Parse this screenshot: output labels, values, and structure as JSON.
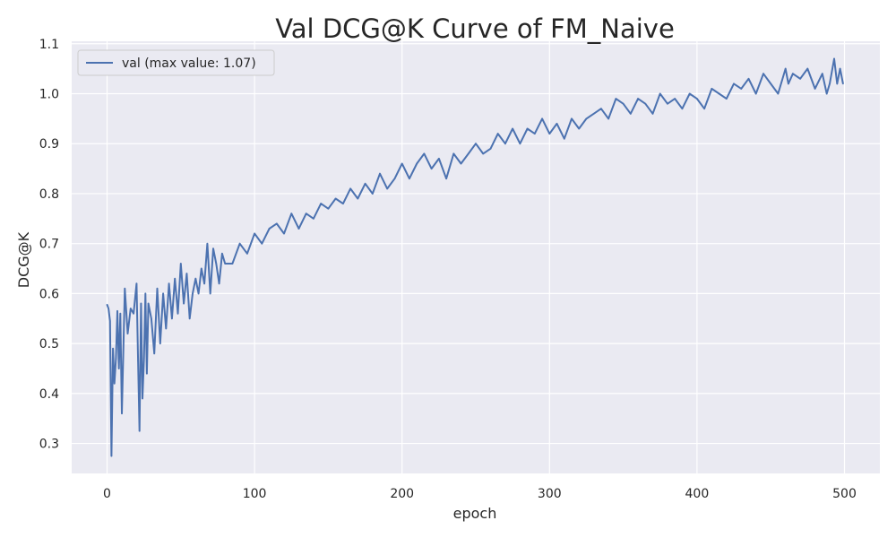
{
  "chart_data": {
    "type": "line",
    "title": "Val DCG@K Curve of FM_Naive",
    "xlabel": "epoch",
    "ylabel": "DCG@K",
    "xlim": [
      -24,
      524
    ],
    "ylim": [
      0.24,
      1.105
    ],
    "x_ticks": [
      0,
      100,
      200,
      300,
      400,
      500
    ],
    "y_ticks": [
      0.3,
      0.4,
      0.5,
      0.6,
      0.7,
      0.8,
      0.9,
      1.0,
      1.1
    ],
    "y_tick_labels": [
      "0.3",
      "0.4",
      "0.5",
      "0.6",
      "0.7",
      "0.8",
      "0.9",
      "1.0",
      "1.1"
    ],
    "grid": true,
    "legend": {
      "position": "top-left"
    },
    "colors": {
      "background": "#eaeaf2",
      "grid": "#ffffff",
      "line": "#4c72b0",
      "text": "#262626"
    },
    "series": [
      {
        "name": "val (max value: 1.07)",
        "x": [
          0,
          1,
          2,
          3,
          4,
          5,
          6,
          7,
          8,
          9,
          10,
          12,
          14,
          16,
          18,
          20,
          21,
          22,
          23,
          24,
          25,
          26,
          27,
          28,
          30,
          32,
          34,
          36,
          38,
          40,
          42,
          44,
          46,
          48,
          50,
          52,
          54,
          56,
          58,
          60,
          62,
          64,
          66,
          68,
          70,
          72,
          74,
          76,
          78,
          80,
          85,
          90,
          95,
          100,
          105,
          110,
          115,
          120,
          125,
          130,
          135,
          140,
          145,
          150,
          155,
          160,
          165,
          170,
          175,
          180,
          185,
          190,
          195,
          200,
          205,
          210,
          215,
          220,
          225,
          230,
          235,
          240,
          245,
          250,
          255,
          260,
          265,
          270,
          275,
          280,
          285,
          290,
          295,
          300,
          305,
          310,
          315,
          320,
          325,
          330,
          335,
          340,
          345,
          350,
          355,
          360,
          365,
          370,
          375,
          380,
          385,
          390,
          395,
          400,
          405,
          410,
          415,
          420,
          425,
          430,
          435,
          440,
          445,
          450,
          455,
          460,
          462,
          465,
          470,
          475,
          480,
          485,
          488,
          490,
          493,
          495,
          497,
          499
        ],
        "y": [
          0.578,
          0.57,
          0.545,
          0.275,
          0.49,
          0.42,
          0.47,
          0.565,
          0.45,
          0.56,
          0.36,
          0.61,
          0.52,
          0.57,
          0.56,
          0.62,
          0.465,
          0.325,
          0.58,
          0.39,
          0.47,
          0.6,
          0.44,
          0.58,
          0.55,
          0.48,
          0.61,
          0.5,
          0.6,
          0.53,
          0.62,
          0.55,
          0.63,
          0.56,
          0.66,
          0.58,
          0.64,
          0.55,
          0.6,
          0.63,
          0.6,
          0.65,
          0.62,
          0.7,
          0.6,
          0.69,
          0.66,
          0.62,
          0.68,
          0.66,
          0.66,
          0.7,
          0.68,
          0.72,
          0.7,
          0.73,
          0.74,
          0.72,
          0.76,
          0.73,
          0.76,
          0.75,
          0.78,
          0.77,
          0.79,
          0.78,
          0.81,
          0.79,
          0.82,
          0.8,
          0.84,
          0.81,
          0.83,
          0.86,
          0.83,
          0.86,
          0.88,
          0.85,
          0.87,
          0.83,
          0.88,
          0.86,
          0.88,
          0.9,
          0.88,
          0.89,
          0.92,
          0.9,
          0.93,
          0.9,
          0.93,
          0.92,
          0.95,
          0.92,
          0.94,
          0.91,
          0.95,
          0.93,
          0.95,
          0.96,
          0.97,
          0.95,
          0.99,
          0.98,
          0.96,
          0.99,
          0.98,
          0.96,
          1.0,
          0.98,
          0.99,
          0.97,
          1.0,
          0.99,
          0.97,
          1.01,
          1.0,
          0.99,
          1.02,
          1.01,
          1.03,
          1.0,
          1.04,
          1.02,
          1.0,
          1.05,
          1.02,
          1.04,
          1.03,
          1.05,
          1.01,
          1.04,
          1.0,
          1.02,
          1.07,
          1.02,
          1.05,
          1.02
        ]
      }
    ]
  }
}
